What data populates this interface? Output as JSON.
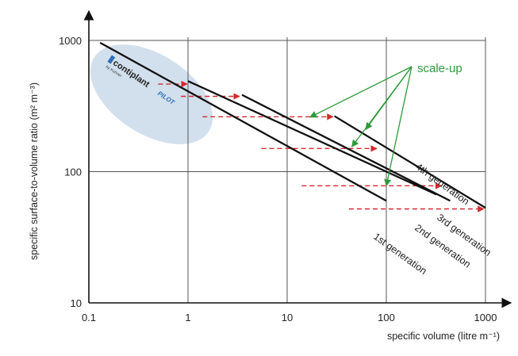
{
  "chart_data": {
    "type": "line",
    "xlabel": "specific volume (litre m⁻¹)",
    "ylabel": "specific surface-to-volume ratio (m² m⁻³)",
    "x_scale": "log",
    "y_scale": "log",
    "xlim": [
      0.1,
      1000
    ],
    "ylim": [
      10,
      1000
    ],
    "x_ticks": [
      0.1,
      1,
      10,
      100,
      1000
    ],
    "x_tick_labels": [
      "0.1",
      "1",
      "10",
      "100",
      "1000"
    ],
    "y_ticks": [
      10,
      100,
      1000
    ],
    "y_tick_labels": [
      "10",
      "100",
      "1000"
    ],
    "grid": true,
    "series": [
      {
        "name": "1st generation",
        "label_parts": [
          "1st",
          " generation"
        ],
        "x": [
          0.13,
          100
        ],
        "y": [
          960,
          60
        ]
      },
      {
        "name": "2nd generation",
        "label_parts": [
          "2nd",
          " generation"
        ],
        "x": [
          1,
          320
        ],
        "y": [
          490,
          67
        ]
      },
      {
        "name": "3rd generation",
        "label_parts": [
          "3rd",
          " generation"
        ],
        "x": [
          3.5,
          440
        ],
        "y": [
          385,
          60
        ]
      },
      {
        "name": "4th generation",
        "label_parts": [
          "4th",
          " generation"
        ],
        "x": [
          30,
          1000
        ],
        "y": [
          265,
          53
        ]
      }
    ],
    "scale_up_arrows": [
      {
        "x": [
          0.5,
          0.98
        ],
        "y": [
          465,
          465
        ]
      },
      {
        "x": [
          0.85,
          3.3
        ],
        "y": [
          375,
          375
        ]
      },
      {
        "x": [
          1.4,
          29
        ],
        "y": [
          262,
          262
        ]
      },
      {
        "x": [
          5.5,
          80
        ],
        "y": [
          150,
          150
        ]
      },
      {
        "x": [
          14,
          360
        ],
        "y": [
          78,
          78
        ]
      },
      {
        "x": [
          42,
          960
        ],
        "y": [
          52,
          52
        ]
      }
    ],
    "annotation": {
      "text": "scale-up",
      "color": "#2e9a3a",
      "pointers_to": [
        {
          "x": 17,
          "y": 260
        },
        {
          "x": 45,
          "y": 155
        },
        {
          "x": 62,
          "y": 210
        },
        {
          "x": 100,
          "y": 78
        }
      ]
    },
    "logo": {
      "text": "contiplant",
      "accent_text": "PILOT",
      "byline": "by Kuhner"
    },
    "colors": {
      "line": "#111111",
      "arrow": "#d6282a",
      "ellipse": "#c7d7e8",
      "grid": "#555555",
      "background": "#ffffff",
      "plot_background": "#ffffff"
    }
  }
}
